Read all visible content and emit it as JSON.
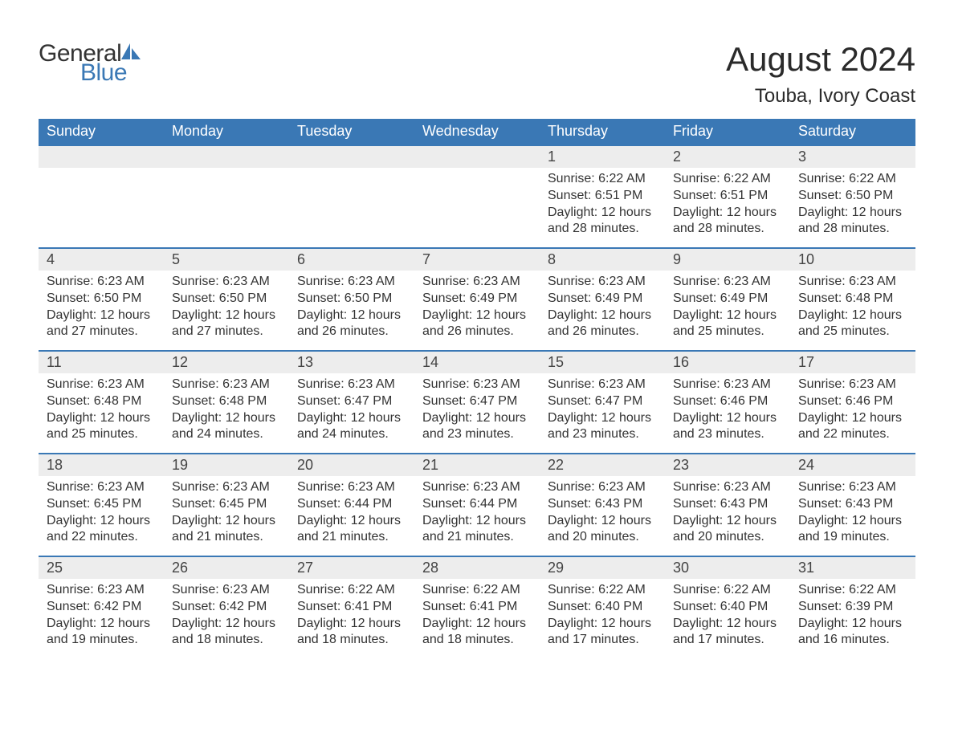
{
  "logo": {
    "text1": "General",
    "text2": "Blue",
    "color_blue": "#3a78b5",
    "color_dark": "#333333"
  },
  "title": "August 2024",
  "location": "Touba, Ivory Coast",
  "header_bg": "#3a78b5",
  "row_divider": "#3a78b5",
  "daynum_bg": "#ededed",
  "text_color": "#333333",
  "weekdays": [
    "Sunday",
    "Monday",
    "Tuesday",
    "Wednesday",
    "Thursday",
    "Friday",
    "Saturday"
  ],
  "weeks": [
    [
      null,
      null,
      null,
      null,
      {
        "n": "1",
        "sr": "6:22 AM",
        "ss": "6:51 PM",
        "dl": "12 hours and 28 minutes."
      },
      {
        "n": "2",
        "sr": "6:22 AM",
        "ss": "6:51 PM",
        "dl": "12 hours and 28 minutes."
      },
      {
        "n": "3",
        "sr": "6:22 AM",
        "ss": "6:50 PM",
        "dl": "12 hours and 28 minutes."
      }
    ],
    [
      {
        "n": "4",
        "sr": "6:23 AM",
        "ss": "6:50 PM",
        "dl": "12 hours and 27 minutes."
      },
      {
        "n": "5",
        "sr": "6:23 AM",
        "ss": "6:50 PM",
        "dl": "12 hours and 27 minutes."
      },
      {
        "n": "6",
        "sr": "6:23 AM",
        "ss": "6:50 PM",
        "dl": "12 hours and 26 minutes."
      },
      {
        "n": "7",
        "sr": "6:23 AM",
        "ss": "6:49 PM",
        "dl": "12 hours and 26 minutes."
      },
      {
        "n": "8",
        "sr": "6:23 AM",
        "ss": "6:49 PM",
        "dl": "12 hours and 26 minutes."
      },
      {
        "n": "9",
        "sr": "6:23 AM",
        "ss": "6:49 PM",
        "dl": "12 hours and 25 minutes."
      },
      {
        "n": "10",
        "sr": "6:23 AM",
        "ss": "6:48 PM",
        "dl": "12 hours and 25 minutes."
      }
    ],
    [
      {
        "n": "11",
        "sr": "6:23 AM",
        "ss": "6:48 PM",
        "dl": "12 hours and 25 minutes."
      },
      {
        "n": "12",
        "sr": "6:23 AM",
        "ss": "6:48 PM",
        "dl": "12 hours and 24 minutes."
      },
      {
        "n": "13",
        "sr": "6:23 AM",
        "ss": "6:47 PM",
        "dl": "12 hours and 24 minutes."
      },
      {
        "n": "14",
        "sr": "6:23 AM",
        "ss": "6:47 PM",
        "dl": "12 hours and 23 minutes."
      },
      {
        "n": "15",
        "sr": "6:23 AM",
        "ss": "6:47 PM",
        "dl": "12 hours and 23 minutes."
      },
      {
        "n": "16",
        "sr": "6:23 AM",
        "ss": "6:46 PM",
        "dl": "12 hours and 23 minutes."
      },
      {
        "n": "17",
        "sr": "6:23 AM",
        "ss": "6:46 PM",
        "dl": "12 hours and 22 minutes."
      }
    ],
    [
      {
        "n": "18",
        "sr": "6:23 AM",
        "ss": "6:45 PM",
        "dl": "12 hours and 22 minutes."
      },
      {
        "n": "19",
        "sr": "6:23 AM",
        "ss": "6:45 PM",
        "dl": "12 hours and 21 minutes."
      },
      {
        "n": "20",
        "sr": "6:23 AM",
        "ss": "6:44 PM",
        "dl": "12 hours and 21 minutes."
      },
      {
        "n": "21",
        "sr": "6:23 AM",
        "ss": "6:44 PM",
        "dl": "12 hours and 21 minutes."
      },
      {
        "n": "22",
        "sr": "6:23 AM",
        "ss": "6:43 PM",
        "dl": "12 hours and 20 minutes."
      },
      {
        "n": "23",
        "sr": "6:23 AM",
        "ss": "6:43 PM",
        "dl": "12 hours and 20 minutes."
      },
      {
        "n": "24",
        "sr": "6:23 AM",
        "ss": "6:43 PM",
        "dl": "12 hours and 19 minutes."
      }
    ],
    [
      {
        "n": "25",
        "sr": "6:23 AM",
        "ss": "6:42 PM",
        "dl": "12 hours and 19 minutes."
      },
      {
        "n": "26",
        "sr": "6:23 AM",
        "ss": "6:42 PM",
        "dl": "12 hours and 18 minutes."
      },
      {
        "n": "27",
        "sr": "6:22 AM",
        "ss": "6:41 PM",
        "dl": "12 hours and 18 minutes."
      },
      {
        "n": "28",
        "sr": "6:22 AM",
        "ss": "6:41 PM",
        "dl": "12 hours and 18 minutes."
      },
      {
        "n": "29",
        "sr": "6:22 AM",
        "ss": "6:40 PM",
        "dl": "12 hours and 17 minutes."
      },
      {
        "n": "30",
        "sr": "6:22 AM",
        "ss": "6:40 PM",
        "dl": "12 hours and 17 minutes."
      },
      {
        "n": "31",
        "sr": "6:22 AM",
        "ss": "6:39 PM",
        "dl": "12 hours and 16 minutes."
      }
    ]
  ],
  "labels": {
    "sunrise": "Sunrise: ",
    "sunset": "Sunset: ",
    "daylight": "Daylight: "
  }
}
